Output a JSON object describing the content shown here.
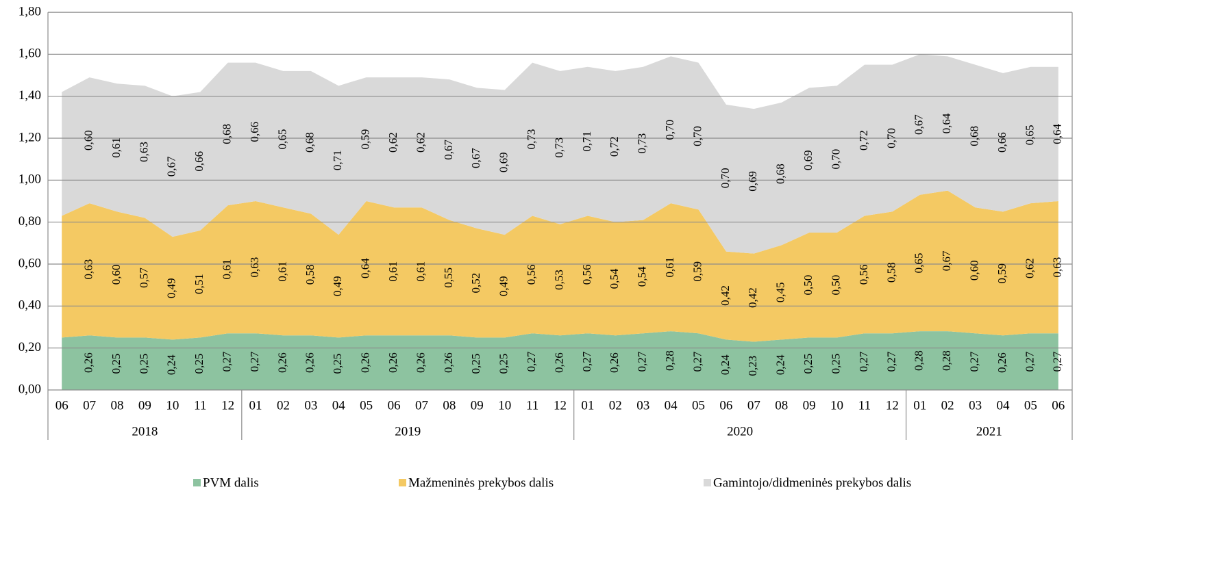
{
  "chart_data": {
    "type": "stacked_area",
    "categories": [
      "06",
      "07",
      "08",
      "09",
      "10",
      "11",
      "12",
      "01",
      "02",
      "03",
      "04",
      "05",
      "06",
      "07",
      "08",
      "09",
      "10",
      "11",
      "12",
      "01",
      "02",
      "03",
      "04",
      "05",
      "06",
      "07",
      "08",
      "09",
      "10",
      "11",
      "12",
      "01",
      "02",
      "03",
      "04",
      "05",
      "06"
    ],
    "x_groups": [
      "2018",
      "2019",
      "2020",
      "2021"
    ],
    "ylim": [
      0,
      1.8
    ],
    "yticks": [
      {
        "value": 0,
        "label": "0,00"
      },
      {
        "value": 0.2,
        "label": "0,20"
      },
      {
        "value": 0.4,
        "label": "0,40"
      },
      {
        "value": 0.6,
        "label": "0,60"
      },
      {
        "value": 0.8,
        "label": "0,80"
      },
      {
        "value": 1.0,
        "label": "1,00"
      },
      {
        "value": 1.2,
        "label": "1,20"
      },
      {
        "value": 1.4,
        "label": "1,40"
      },
      {
        "value": 1.6,
        "label": "1,60"
      },
      {
        "value": 1.8,
        "label": "1,80"
      }
    ],
    "grid": true,
    "legend": "bottom",
    "series": [
      {
        "name": "PVM dalis",
        "color": "#8dc3a0",
        "values": [
          0.25,
          0.26,
          0.25,
          0.25,
          0.24,
          0.25,
          0.27,
          0.27,
          0.26,
          0.26,
          0.25,
          0.26,
          0.26,
          0.26,
          0.26,
          0.25,
          0.25,
          0.27,
          0.26,
          0.27,
          0.26,
          0.27,
          0.28,
          0.27,
          0.24,
          0.23,
          0.24,
          0.25,
          0.25,
          0.27,
          0.27,
          0.28,
          0.28,
          0.27,
          0.26,
          0.27,
          0.27
        ],
        "value_labels": [
          null,
          "0,26",
          "0,25",
          "0,25",
          "0,24",
          "0,25",
          "0,27",
          "0,27",
          "0,26",
          "0,26",
          "0,25",
          "0,26",
          "0,26",
          "0,26",
          "0,26",
          "0,25",
          "0,25",
          "0,27",
          "0,26",
          "0,27",
          "0,26",
          "0,27",
          "0,28",
          "0,27",
          "0,24",
          "0,23",
          "0,24",
          "0,25",
          "0,25",
          "0,27",
          "0,27",
          "0,28",
          "0,28",
          "0,27",
          "0,26",
          "0,27",
          "0,27"
        ]
      },
      {
        "name": "Mažmeninės prekybos dalis",
        "color": "#f4c963",
        "values": [
          0.58,
          0.63,
          0.6,
          0.57,
          0.49,
          0.51,
          0.61,
          0.63,
          0.61,
          0.58,
          0.49,
          0.64,
          0.61,
          0.61,
          0.55,
          0.52,
          0.49,
          0.56,
          0.53,
          0.56,
          0.54,
          0.54,
          0.61,
          0.59,
          0.42,
          0.42,
          0.45,
          0.5,
          0.5,
          0.56,
          0.58,
          0.65,
          0.67,
          0.6,
          0.59,
          0.62,
          0.63
        ],
        "value_labels": [
          null,
          "0,63",
          "0,60",
          "0,57",
          "0,49",
          "0,51",
          "0,61",
          "0,63",
          "0,61",
          "0,58",
          "0,49",
          "0,64",
          "0,61",
          "0,61",
          "0,55",
          "0,52",
          "0,49",
          "0,56",
          "0,53",
          "0,56",
          "0,54",
          "0,54",
          "0,61",
          "0,59",
          "0,42",
          "0,42",
          "0,45",
          "0,50",
          "0,50",
          "0,56",
          "0,58",
          "0,65",
          "0,67",
          "0,60",
          "0,59",
          "0,62",
          "0,63"
        ]
      },
      {
        "name": "Gamintojo/didmeninės prekybos dalis",
        "color": "#d9d9d9",
        "values": [
          0.59,
          0.6,
          0.61,
          0.63,
          0.67,
          0.66,
          0.68,
          0.66,
          0.65,
          0.68,
          0.71,
          0.59,
          0.62,
          0.62,
          0.67,
          0.67,
          0.69,
          0.73,
          0.73,
          0.71,
          0.72,
          0.73,
          0.7,
          0.7,
          0.7,
          0.69,
          0.68,
          0.69,
          0.7,
          0.72,
          0.7,
          0.67,
          0.64,
          0.68,
          0.66,
          0.65,
          0.64
        ],
        "value_labels": [
          null,
          "0,60",
          "0,61",
          "0,63",
          "0,67",
          "0,66",
          "0,68",
          "0,66",
          "0,65",
          "0,68",
          "0,71",
          "0,59",
          "0,62",
          "0,62",
          "0,67",
          "0,67",
          "0,69",
          "0,73",
          "0,73",
          "0,71",
          "0,72",
          "0,73",
          "0,70",
          "0,70",
          "0,70",
          "0,69",
          "0,68",
          "0,69",
          "0,70",
          "0,72",
          "0,70",
          "0,67",
          "0,64",
          "0,68",
          "0,66",
          "0,65",
          "0,64"
        ]
      }
    ]
  }
}
